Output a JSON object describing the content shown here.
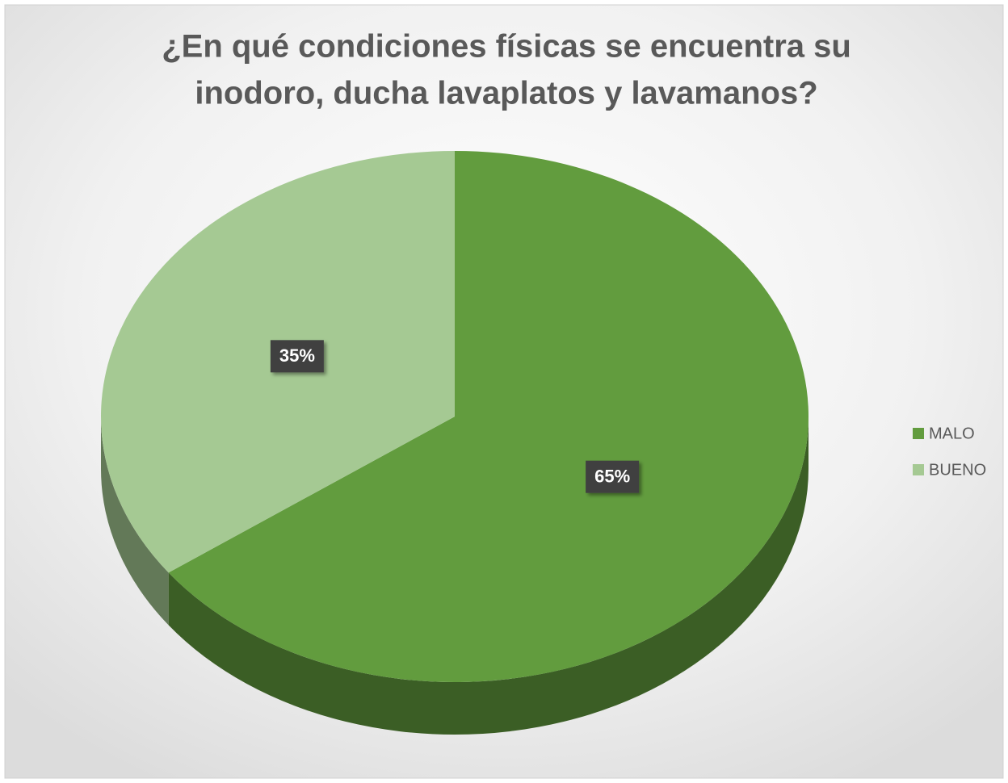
{
  "chart_data": {
    "type": "pie",
    "title": [
      "¿En qué condiciones físicas se encuentra su",
      "inodoro, ducha lavaplatos y lavamanos?"
    ],
    "categories": [
      "MALO",
      "BUENO"
    ],
    "values": [
      65,
      35
    ],
    "value_labels": [
      "65%",
      "35%"
    ],
    "colors": [
      "#629c3e",
      "#a5c993"
    ],
    "legend": "right"
  }
}
